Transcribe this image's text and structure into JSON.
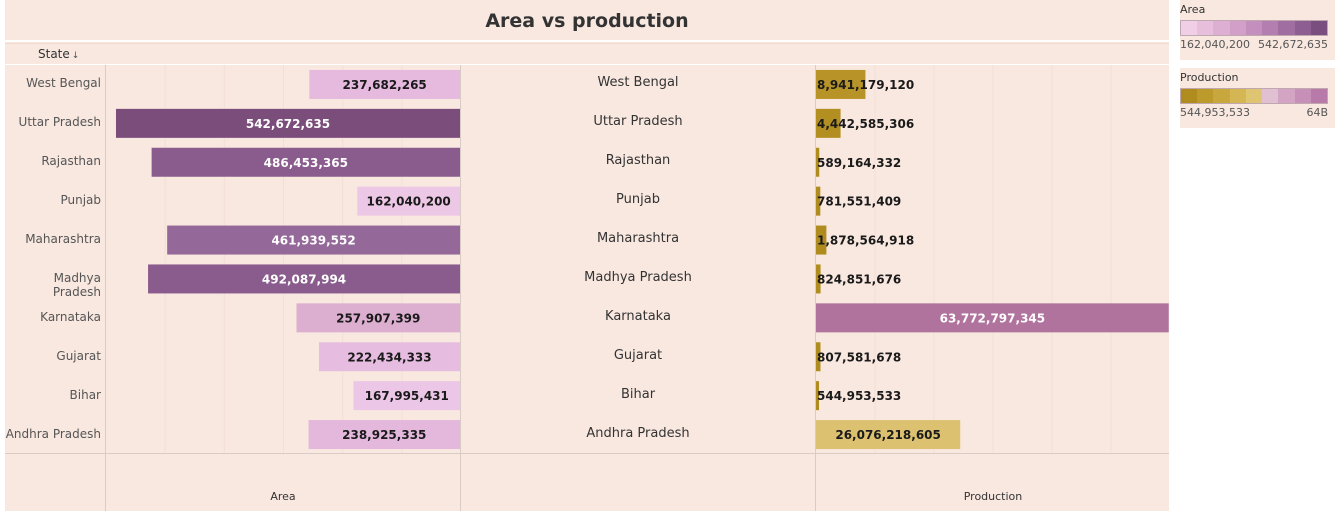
{
  "title": "Area vs production",
  "state_header": "State",
  "sort_glyph": "↓",
  "axis_titles": {
    "left": "Area",
    "right": "Production"
  },
  "legend": {
    "area": {
      "title": "Area",
      "min_label": "162,040,200",
      "max_label": "542,672,635",
      "ramp": [
        "#f0cfe6",
        "#e8bedd",
        "#ddafd3",
        "#d19fc8",
        "#c48fbd",
        "#b47eb0",
        "#a16ea1",
        "#8d5e92",
        "#7a4e7e"
      ]
    },
    "production": {
      "title": "Production",
      "min_label": "544,953,533",
      "max_label": "64B",
      "ramp": [
        "#b08c1e",
        "#bc9a2c",
        "#c8a83e",
        "#d4b653",
        "#dfc572",
        "#e0c0d2",
        "#d4a4c4",
        "#c790b8",
        "#b87aa8"
      ]
    }
  },
  "chart_data": [
    {
      "type": "bar",
      "title": "Area vs production",
      "xlabel": "Area",
      "orientation": "horizontal-reversed",
      "categories": [
        "West Bengal",
        "Uttar Pradesh",
        "Rajasthan",
        "Punjab",
        "Maharashtra",
        "Madhya Pradesh",
        "Karnataka",
        "Gujarat",
        "Bihar",
        "Andhra Pradesh"
      ],
      "values": [
        237682265,
        542672635,
        486453365,
        162040200,
        461939552,
        492087994,
        257907399,
        222434333,
        167995431,
        238925335
      ],
      "labels": [
        "237,682,265",
        "542,672,635",
        "486,453,365",
        "162,040,200",
        "461,939,552",
        "492,087,994",
        "257,907,399",
        "222,434,333",
        "167,995,431",
        "238,925,335"
      ],
      "colors": [
        "#e5bade",
        "#7b4d7b",
        "#895c8d",
        "#edc8e6",
        "#95689a",
        "#8a5c8e",
        "#dcaed0",
        "#e6bde0",
        "#ecc6e6",
        "#e4b8dc"
      ],
      "xlim": [
        0,
        560000000
      ]
    },
    {
      "type": "bar",
      "title": "Area vs production",
      "xlabel": "Production",
      "orientation": "horizontal",
      "categories": [
        "West Bengal",
        "Uttar Pradesh",
        "Rajasthan",
        "Punjab",
        "Maharashtra",
        "Madhya Pradesh",
        "Karnataka",
        "Gujarat",
        "Bihar",
        "Andhra Pradesh"
      ],
      "values": [
        8941179120,
        4442585306,
        589164332,
        781551409,
        1878564918,
        824851676,
        63772797345,
        807581678,
        544953533,
        26076218605
      ],
      "labels": [
        "8,941,179,120",
        "4,442,585,306",
        "589,164,332",
        "781,551,409",
        "1,878,564,918",
        "824,851,676",
        "63,772,797,345",
        "807,581,678",
        "544,953,533",
        "26,076,218,605"
      ],
      "colors": [
        "#b89428",
        "#b38f22",
        "#b08c1e",
        "#b08c1e",
        "#b08c1e",
        "#b08c1e",
        "#b0739d",
        "#b08c1e",
        "#b08c1e",
        "#dcc270"
      ],
      "xlim": [
        0,
        64000000000
      ]
    }
  ]
}
